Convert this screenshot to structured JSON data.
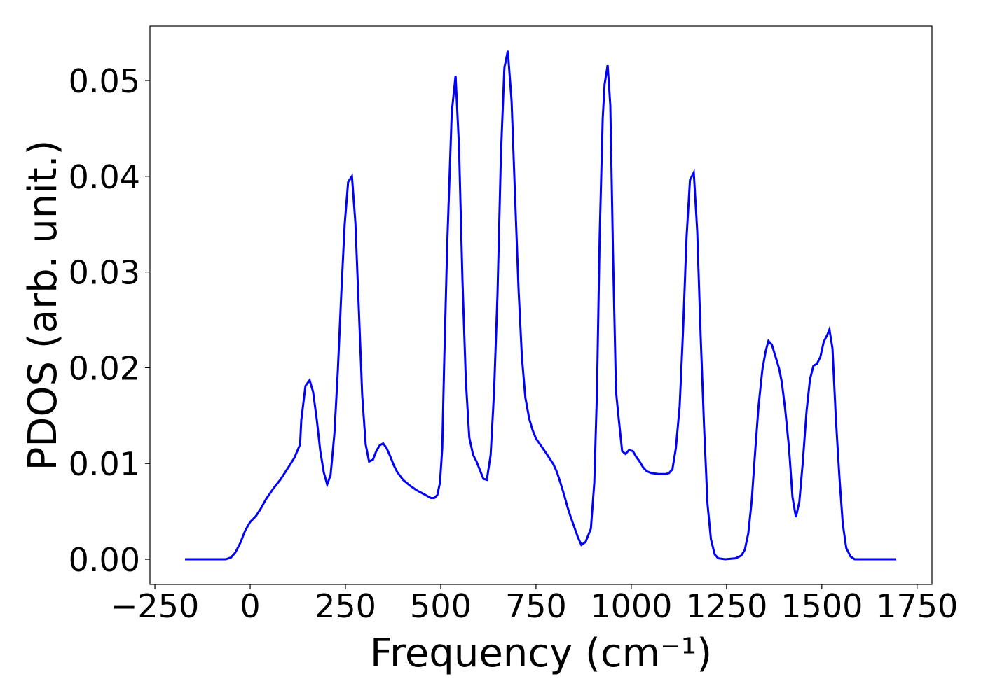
{
  "chart_data": {
    "type": "line",
    "xlabel": "Frequency (cm⁻¹)",
    "ylabel": "PDOS (arb. unit.)",
    "x": [
      -171,
      -64,
      -50,
      -39,
      -26,
      -13,
      0,
      15,
      28,
      42,
      61,
      79,
      97,
      116,
      131,
      134,
      145,
      156,
      165,
      175,
      184,
      193,
      202,
      211,
      221,
      230,
      239,
      248,
      257,
      267,
      276,
      285,
      294,
      303,
      312,
      322,
      331,
      340,
      349,
      358,
      368,
      377,
      386,
      401,
      419,
      437,
      456,
      474,
      483,
      491,
      498,
      504,
      509,
      517,
      529,
      539,
      548,
      557,
      566,
      575,
      585,
      594,
      603,
      612,
      621,
      631,
      640,
      649,
      658,
      667,
      676,
      686,
      695,
      704,
      713,
      722,
      732,
      741,
      750,
      759,
      778,
      796,
      805,
      814,
      824,
      833,
      842,
      851,
      860,
      869,
      880,
      894,
      903,
      910,
      917,
      925,
      930,
      938,
      945,
      952,
      960,
      967,
      976,
      985,
      994,
      1004,
      1013,
      1022,
      1031,
      1040,
      1053,
      1072,
      1090,
      1099,
      1108,
      1117,
      1127,
      1136,
      1145,
      1154,
      1164,
      1173,
      1182,
      1191,
      1200,
      1209,
      1219,
      1228,
      1246,
      1274,
      1289,
      1298,
      1307,
      1316,
      1325,
      1334,
      1344,
      1353,
      1360,
      1369,
      1379,
      1388,
      1395,
      1404,
      1414,
      1423,
      1432,
      1441,
      1450,
      1460,
      1469,
      1478,
      1487,
      1496,
      1505,
      1515,
      1520,
      1528,
      1537,
      1546,
      1555,
      1564,
      1575,
      1586,
      1695
    ],
    "series": [
      {
        "color": "#0000ff",
        "values": [
          0,
          0,
          0.0002,
          0.0007,
          0.0017,
          0.003,
          0.0039,
          0.0045,
          0.0053,
          0.0063,
          0.0074,
          0.0083,
          0.0094,
          0.0106,
          0.012,
          0.0145,
          0.0181,
          0.0187,
          0.0175,
          0.0145,
          0.0113,
          0.0091,
          0.0078,
          0.0088,
          0.0131,
          0.0197,
          0.0277,
          0.035,
          0.0394,
          0.04,
          0.0352,
          0.0262,
          0.0171,
          0.012,
          0.0102,
          0.0104,
          0.0113,
          0.0119,
          0.0121,
          0.0116,
          0.0107,
          0.0098,
          0.0091,
          0.0083,
          0.0077,
          0.0072,
          0.0068,
          0.0064,
          0.0064,
          0.0067,
          0.008,
          0.0116,
          0.0204,
          0.0328,
          0.0467,
          0.0505,
          0.0431,
          0.0292,
          0.0186,
          0.0127,
          0.0109,
          0.0102,
          0.0093,
          0.0084,
          0.0083,
          0.0109,
          0.0175,
          0.0277,
          0.0423,
          0.0513,
          0.0531,
          0.0478,
          0.0379,
          0.0284,
          0.0211,
          0.0169,
          0.0147,
          0.0135,
          0.0126,
          0.0121,
          0.011,
          0.0099,
          0.0091,
          0.008,
          0.0067,
          0.0054,
          0.0043,
          0.0033,
          0.0023,
          0.0015,
          0.0018,
          0.0032,
          0.008,
          0.0175,
          0.0336,
          0.046,
          0.0496,
          0.0516,
          0.0474,
          0.0321,
          0.0175,
          0.0147,
          0.0113,
          0.011,
          0.0114,
          0.0113,
          0.0107,
          0.0102,
          0.0096,
          0.0092,
          0.009,
          0.0089,
          0.0089,
          0.009,
          0.0094,
          0.0116,
          0.016,
          0.024,
          0.0336,
          0.0396,
          0.0404,
          0.0343,
          0.0234,
          0.0139,
          0.0058,
          0.0021,
          0.0005,
          0.0001,
          0,
          0.0001,
          0.0004,
          0.001,
          0.0027,
          0.0061,
          0.0112,
          0.016,
          0.0198,
          0.0218,
          0.0228,
          0.0224,
          0.0211,
          0.0199,
          0.0185,
          0.0156,
          0.0116,
          0.0065,
          0.0044,
          0.006,
          0.0101,
          0.0155,
          0.0188,
          0.0202,
          0.0204,
          0.0211,
          0.0227,
          0.0235,
          0.024,
          0.022,
          0.0146,
          0.0087,
          0.0037,
          0.0012,
          0.0003,
          0,
          0
        ]
      }
    ],
    "xlim": [
      -263,
      1789
    ],
    "ylim": [
      -0.00263,
      0.0557
    ],
    "xticks": [
      {
        "value": -250,
        "label": "−250"
      },
      0,
      250,
      500,
      750,
      1000,
      1250,
      1500,
      1750
    ],
    "yticks": [
      {
        "value": 0,
        "label": "0.00"
      },
      0.01,
      0.02,
      0.03,
      0.04,
      0.05
    ],
    "grid": false
  }
}
